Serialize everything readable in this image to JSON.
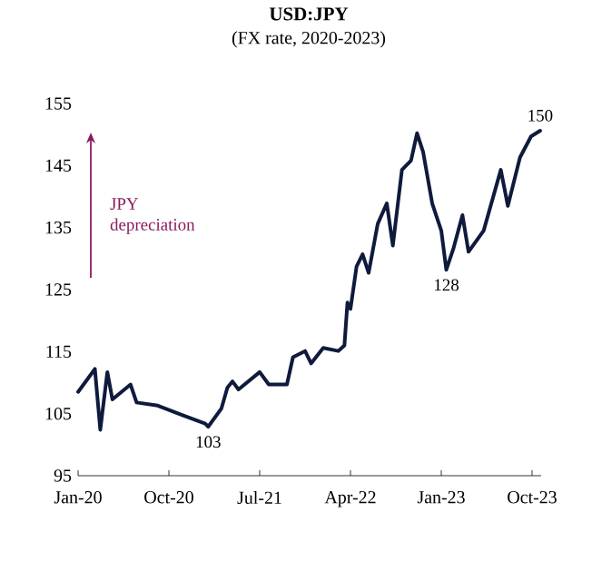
{
  "chart_data": {
    "type": "line",
    "title": "USD:JPY",
    "subtitle": "(FX rate, 2020-2023)",
    "x": [
      "2020-01-01",
      "2020-02-21",
      "2020-03-07",
      "2020-03-28",
      "2020-04-13",
      "2020-06-07",
      "2020-06-25",
      "2020-08-28",
      "2020-11-10",
      "2021-01-19",
      "2021-01-28",
      "2021-03-07",
      "2021-03-25",
      "2021-04-10",
      "2021-04-28",
      "2021-07-01",
      "2021-07-28",
      "2021-09-22",
      "2021-10-10",
      "2021-11-16",
      "2021-12-04",
      "2022-01-10",
      "2022-02-25",
      "2022-03-13",
      "2022-03-22",
      "2022-04-01",
      "2022-04-19",
      "2022-05-07",
      "2022-05-25",
      "2022-06-22",
      "2022-07-19",
      "2022-08-07",
      "2022-09-04",
      "2022-10-01",
      "2022-10-19",
      "2022-11-07",
      "2022-12-04",
      "2023-01-01",
      "2023-01-16",
      "2023-02-07",
      "2023-03-04",
      "2023-03-22",
      "2023-05-07",
      "2023-06-28",
      "2023-07-19",
      "2023-08-25",
      "2023-09-28",
      "2023-10-25"
    ],
    "series": [
      {
        "color": "#0f1a3c",
        "values": [
          108.5,
          112.2,
          102.4,
          111.7,
          107.3,
          109.7,
          106.8,
          106.3,
          104.8,
          103.4,
          102.9,
          105.8,
          109.2,
          110.2,
          108.9,
          111.7,
          109.7,
          109.7,
          114.1,
          115.1,
          113.1,
          115.6,
          115.1,
          116.0,
          122.9,
          121.9,
          128.7,
          130.7,
          127.7,
          135.6,
          138.9,
          132.1,
          144.3,
          145.8,
          150.2,
          147.2,
          138.9,
          134.5,
          128.2,
          131.6,
          137.0,
          131.1,
          134.5,
          144.3,
          138.5,
          146.3,
          149.7,
          150.6
        ]
      }
    ],
    "xlim": [
      "2020-01-01",
      "2023-10-28"
    ],
    "ylim": [
      95,
      155
    ],
    "xticks": [
      {
        "value": "2020-01-01",
        "label": "Jan-20"
      },
      {
        "value": "2020-10-01",
        "label": "Oct-20"
      },
      {
        "value": "2021-07-01",
        "label": "Jul-21"
      },
      {
        "value": "2022-04-01",
        "label": "Apr-22"
      },
      {
        "value": "2023-01-01",
        "label": "Jan-23"
      },
      {
        "value": "2023-10-01",
        "label": "Oct-23"
      }
    ],
    "yticks": [
      95,
      105,
      115,
      125,
      135,
      145,
      155
    ],
    "annotations": [
      "JPY depreciation",
      {
        "text": "103",
        "x": "2021-01-28",
        "y": 102.9
      },
      {
        "text": "128",
        "x": "2023-01-16",
        "y": 128.2
      },
      {
        "text": "150",
        "x": "2023-10-25",
        "y": 150.6
      }
    ]
  }
}
